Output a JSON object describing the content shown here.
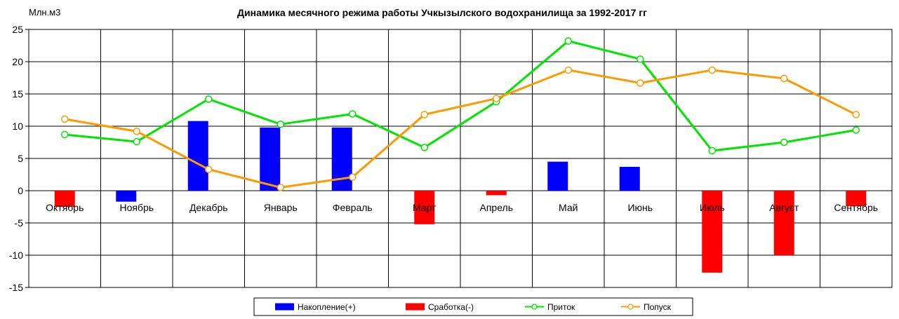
{
  "chart_data": {
    "type": "bar+line",
    "title": "Динамика месячного режима работы Учкызылского водохранилища за 1992-2017 гг",
    "ylabel": "Млн.м3",
    "ylim": [
      -15,
      25
    ],
    "yticks": [
      25,
      20,
      15,
      10,
      5,
      0,
      -5,
      -10,
      -15
    ],
    "grid": true,
    "legend_position": "bottom",
    "categories": [
      "Октябрь",
      "Ноябрь",
      "Декабрь",
      "Январь",
      "Февраль",
      "Март",
      "Апрель",
      "Май",
      "Июнь",
      "Июль",
      "Август",
      "Сентябрь"
    ],
    "series": [
      {
        "name": "Накопление(+)",
        "type": "bar",
        "color": "#0000ff",
        "values": [
          0,
          0,
          10.8,
          9.8,
          9.8,
          0,
          0,
          4.5,
          3.7,
          0,
          0,
          0
        ]
      },
      {
        "name": "Сработка(-)",
        "type": "bar",
        "color": "#ff0000",
        "values": [
          -2.5,
          0,
          0,
          0,
          0,
          -5.2,
          -0.7,
          0,
          0,
          -12.7,
          -10.0,
          -2.4
        ]
      },
      {
        "name": "Приток",
        "type": "line",
        "color": "#00e600",
        "values": [
          8.7,
          7.6,
          14.2,
          10.3,
          11.9,
          6.7,
          13.8,
          23.2,
          20.4,
          6.2,
          7.5,
          9.4
        ]
      },
      {
        "name": "Попуск",
        "type": "line",
        "color": "#ff9900",
        "values": [
          11.1,
          9.2,
          3.3,
          0.5,
          2.1,
          11.8,
          14.3,
          18.7,
          16.7,
          18.7,
          17.4,
          11.8
        ]
      }
    ],
    "extra_bar": {
      "category": "Ноябрь",
      "value": -1.7,
      "color": "#0000ff"
    }
  }
}
